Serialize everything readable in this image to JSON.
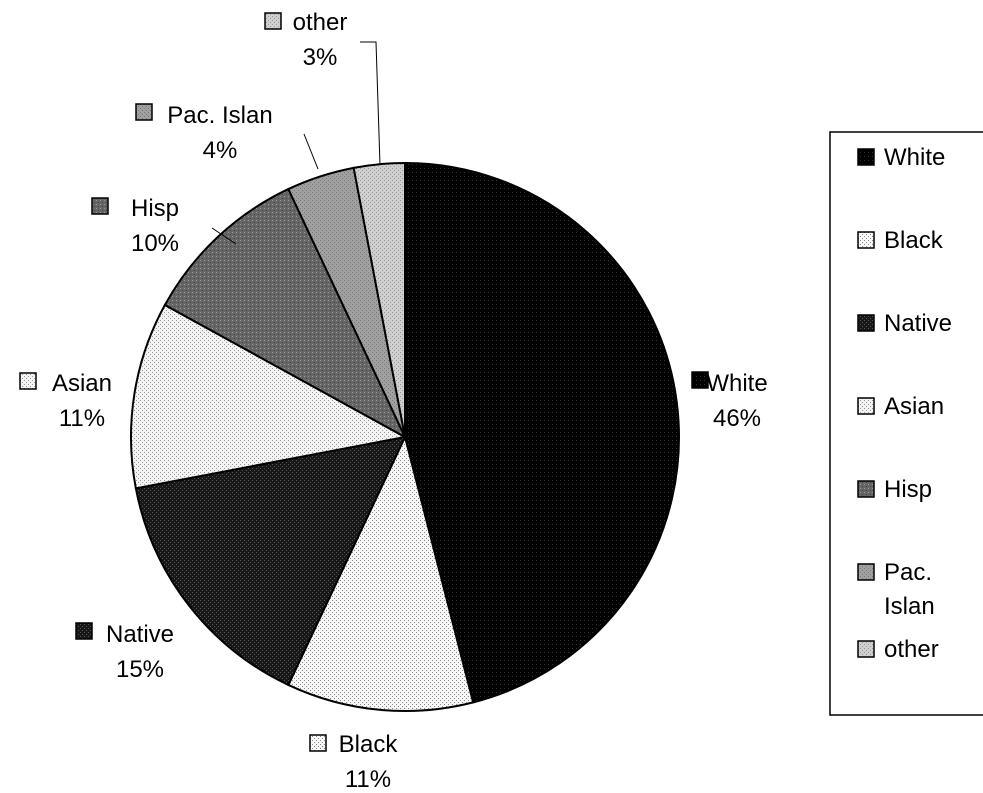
{
  "chart_data": {
    "type": "pie",
    "title": "",
    "categories": [
      "White",
      "Black",
      "Native",
      "Asian",
      "Hisp",
      "Pac. Islan",
      "other"
    ],
    "values": [
      46,
      11,
      15,
      11,
      10,
      4,
      3
    ],
    "value_labels": [
      "46%",
      "11%",
      "15%",
      "11%",
      "10%",
      "4%",
      "3%"
    ],
    "legend": {
      "placement": "right",
      "entries": [
        "White",
        "Black",
        "Native",
        "Asian",
        "Hisp",
        "Pac. Islan",
        "other"
      ]
    },
    "slice_colors": [
      "#000000",
      "#f4f4f4",
      "#1e1e1e",
      "#eeeeee",
      "#6e6e6e",
      "#a6a6a6",
      "#cdcdcd"
    ]
  }
}
